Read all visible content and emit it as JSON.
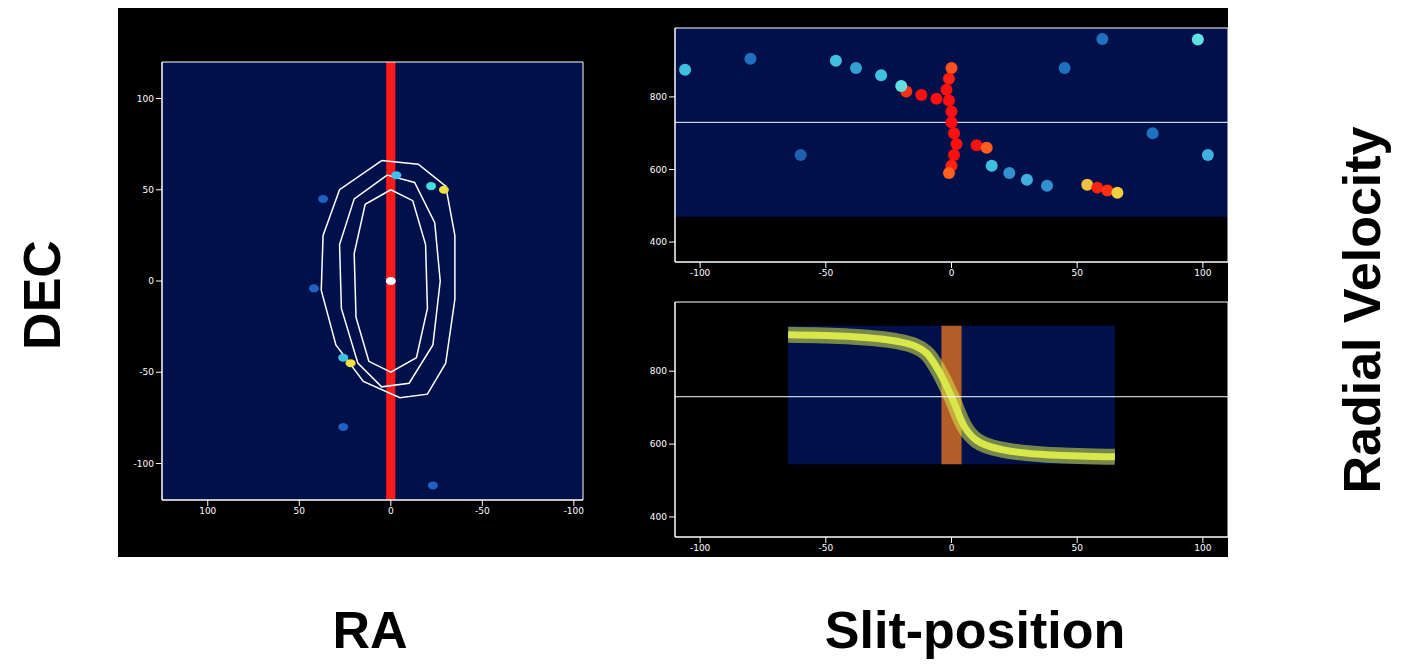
{
  "texts": {
    "left_y_label": "DEC",
    "left_x_label": "RA",
    "right_x_label": "Slit-position",
    "right_y_label": "Radial Velocity"
  },
  "chart_data": [
    {
      "type": "scatter",
      "xlim": [
        125,
        -105
      ],
      "ylim": [
        -120,
        120
      ],
      "xticks": [
        100,
        50,
        0,
        -50,
        -100
      ],
      "yticks": [
        -100,
        -50,
        0,
        50,
        100
      ],
      "background": "#00104a",
      "contours": {
        "color": "#ffffff",
        "lines": [
          [
            [
              5,
              66
            ],
            [
              -15,
              64
            ],
            [
              -30,
              52
            ],
            [
              -35,
              25
            ],
            [
              -35,
              -10
            ],
            [
              -30,
              -45
            ],
            [
              -20,
              -62
            ],
            [
              -5,
              -64
            ],
            [
              15,
              -55
            ],
            [
              30,
              -35
            ],
            [
              38,
              -5
            ],
            [
              37,
              25
            ],
            [
              28,
              50
            ],
            [
              5,
              66
            ]
          ],
          [
            [
              2,
              58
            ],
            [
              -13,
              54
            ],
            [
              -24,
              32
            ],
            [
              -27,
              0
            ],
            [
              -23,
              -35
            ],
            [
              -10,
              -56
            ],
            [
              5,
              -58
            ],
            [
              18,
              -45
            ],
            [
              27,
              -15
            ],
            [
              28,
              20
            ],
            [
              20,
              45
            ],
            [
              2,
              58
            ]
          ],
          [
            [
              0,
              50
            ],
            [
              -12,
              44
            ],
            [
              -19,
              20
            ],
            [
              -20,
              -15
            ],
            [
              -14,
              -42
            ],
            [
              0,
              -50
            ],
            [
              12,
              -44
            ],
            [
              19,
              -20
            ],
            [
              20,
              15
            ],
            [
              14,
              42
            ],
            [
              0,
              50
            ]
          ]
        ]
      },
      "slit": {
        "x": [
          -2.5,
          2.5
        ],
        "color": "#ff1a1a"
      },
      "knots": [
        {
          "x": -29,
          "y": 50,
          "color": "#f0e040"
        },
        {
          "x": -22,
          "y": 52,
          "color": "#40e0e0"
        },
        {
          "x": 22,
          "y": -45,
          "color": "#f0e040"
        },
        {
          "x": 26,
          "y": -42,
          "color": "#40c0e0"
        },
        {
          "x": 0,
          "y": 0,
          "color": "#ffffff"
        },
        {
          "x": -3,
          "y": 58,
          "color": "#40c0f0"
        },
        {
          "x": 42,
          "y": -4,
          "color": "#2060c0"
        },
        {
          "x": 37,
          "y": 45,
          "color": "#2060c0"
        },
        {
          "x": -23,
          "y": -112,
          "color": "#2060c0"
        },
        {
          "x": 26,
          "y": -80,
          "color": "#2060c0"
        }
      ]
    },
    {
      "type": "scatter",
      "xlim": [
        -110,
        110
      ],
      "ylim": [
        345,
        990
      ],
      "xticks": [
        -100,
        -50,
        0,
        50,
        100
      ],
      "yticks": [
        400,
        600,
        800
      ],
      "background": "#00104a",
      "coverage_ylim": [
        470,
        990
      ],
      "reference_line": {
        "y": 730,
        "color": "#ffffff"
      },
      "points": [
        {
          "x": 0,
          "y": 880,
          "color": "#ff5020"
        },
        {
          "x": -1,
          "y": 850,
          "color": "#ff2010"
        },
        {
          "x": -2,
          "y": 820,
          "color": "#ff1010"
        },
        {
          "x": -1,
          "y": 790,
          "color": "#ff1010"
        },
        {
          "x": 0,
          "y": 760,
          "color": "#ff1010"
        },
        {
          "x": 0,
          "y": 730,
          "color": "#ff1010"
        },
        {
          "x": 1,
          "y": 700,
          "color": "#ff1010"
        },
        {
          "x": 2,
          "y": 670,
          "color": "#ff1010"
        },
        {
          "x": 1,
          "y": 640,
          "color": "#ff1010"
        },
        {
          "x": 0,
          "y": 610,
          "color": "#ff2010"
        },
        {
          "x": -1,
          "y": 590,
          "color": "#ff6020"
        },
        {
          "x": -18,
          "y": 815,
          "color": "#ff3010"
        },
        {
          "x": -12,
          "y": 805,
          "color": "#ff1010"
        },
        {
          "x": -6,
          "y": 795,
          "color": "#ff1010"
        },
        {
          "x": 10,
          "y": 667,
          "color": "#ff1010"
        },
        {
          "x": 14,
          "y": 660,
          "color": "#ff6020"
        },
        {
          "x": 16,
          "y": 610,
          "color": "#40c0e0"
        },
        {
          "x": 23,
          "y": 590,
          "color": "#3090d0"
        },
        {
          "x": 30,
          "y": 572,
          "color": "#40b0e0"
        },
        {
          "x": 38,
          "y": 555,
          "color": "#3090d0"
        },
        {
          "x": 54,
          "y": 558,
          "color": "#f0c040"
        },
        {
          "x": 58,
          "y": 550,
          "color": "#ff2010"
        },
        {
          "x": 62,
          "y": 542,
          "color": "#ff3010"
        },
        {
          "x": 66,
          "y": 536,
          "color": "#f0d040"
        },
        {
          "x": -46,
          "y": 900,
          "color": "#40c0e0"
        },
        {
          "x": -38,
          "y": 880,
          "color": "#30a0d0"
        },
        {
          "x": -28,
          "y": 860,
          "color": "#40c0e0"
        },
        {
          "x": -20,
          "y": 830,
          "color": "#60e0e0"
        },
        {
          "x": -106,
          "y": 875,
          "color": "#40c0e0"
        },
        {
          "x": -80,
          "y": 905,
          "color": "#2070c0"
        },
        {
          "x": 98,
          "y": 958,
          "color": "#60e0e0"
        },
        {
          "x": 80,
          "y": 700,
          "color": "#2070c0"
        },
        {
          "x": 102,
          "y": 640,
          "color": "#40b0e0"
        },
        {
          "x": -60,
          "y": 640,
          "color": "#2060b0"
        },
        {
          "x": 45,
          "y": 880,
          "color": "#2070c0"
        },
        {
          "x": 60,
          "y": 960,
          "color": "#2070c0"
        }
      ]
    },
    {
      "type": "line",
      "xlim": [
        -110,
        110
      ],
      "ylim": [
        345,
        990
      ],
      "xticks": [
        -100,
        -50,
        0,
        50,
        100
      ],
      "yticks": [
        400,
        600,
        800
      ],
      "background": "#00104a",
      "coverage": {
        "x": [
          -65,
          65
        ],
        "y": [
          545,
          925
        ]
      },
      "reference_line": {
        "y": 730,
        "color": "#ffffff"
      },
      "core": {
        "x": [
          -4,
          4
        ],
        "color": "#e07020"
      },
      "model": {
        "x": [
          -65,
          -40,
          -20,
          -10,
          -5,
          0,
          5,
          10,
          20,
          40,
          65
        ],
        "values": [
          900,
          895,
          880,
          850,
          800,
          730,
          650,
          610,
          585,
          570,
          565
        ],
        "color": "#d8e84a"
      }
    }
  ]
}
